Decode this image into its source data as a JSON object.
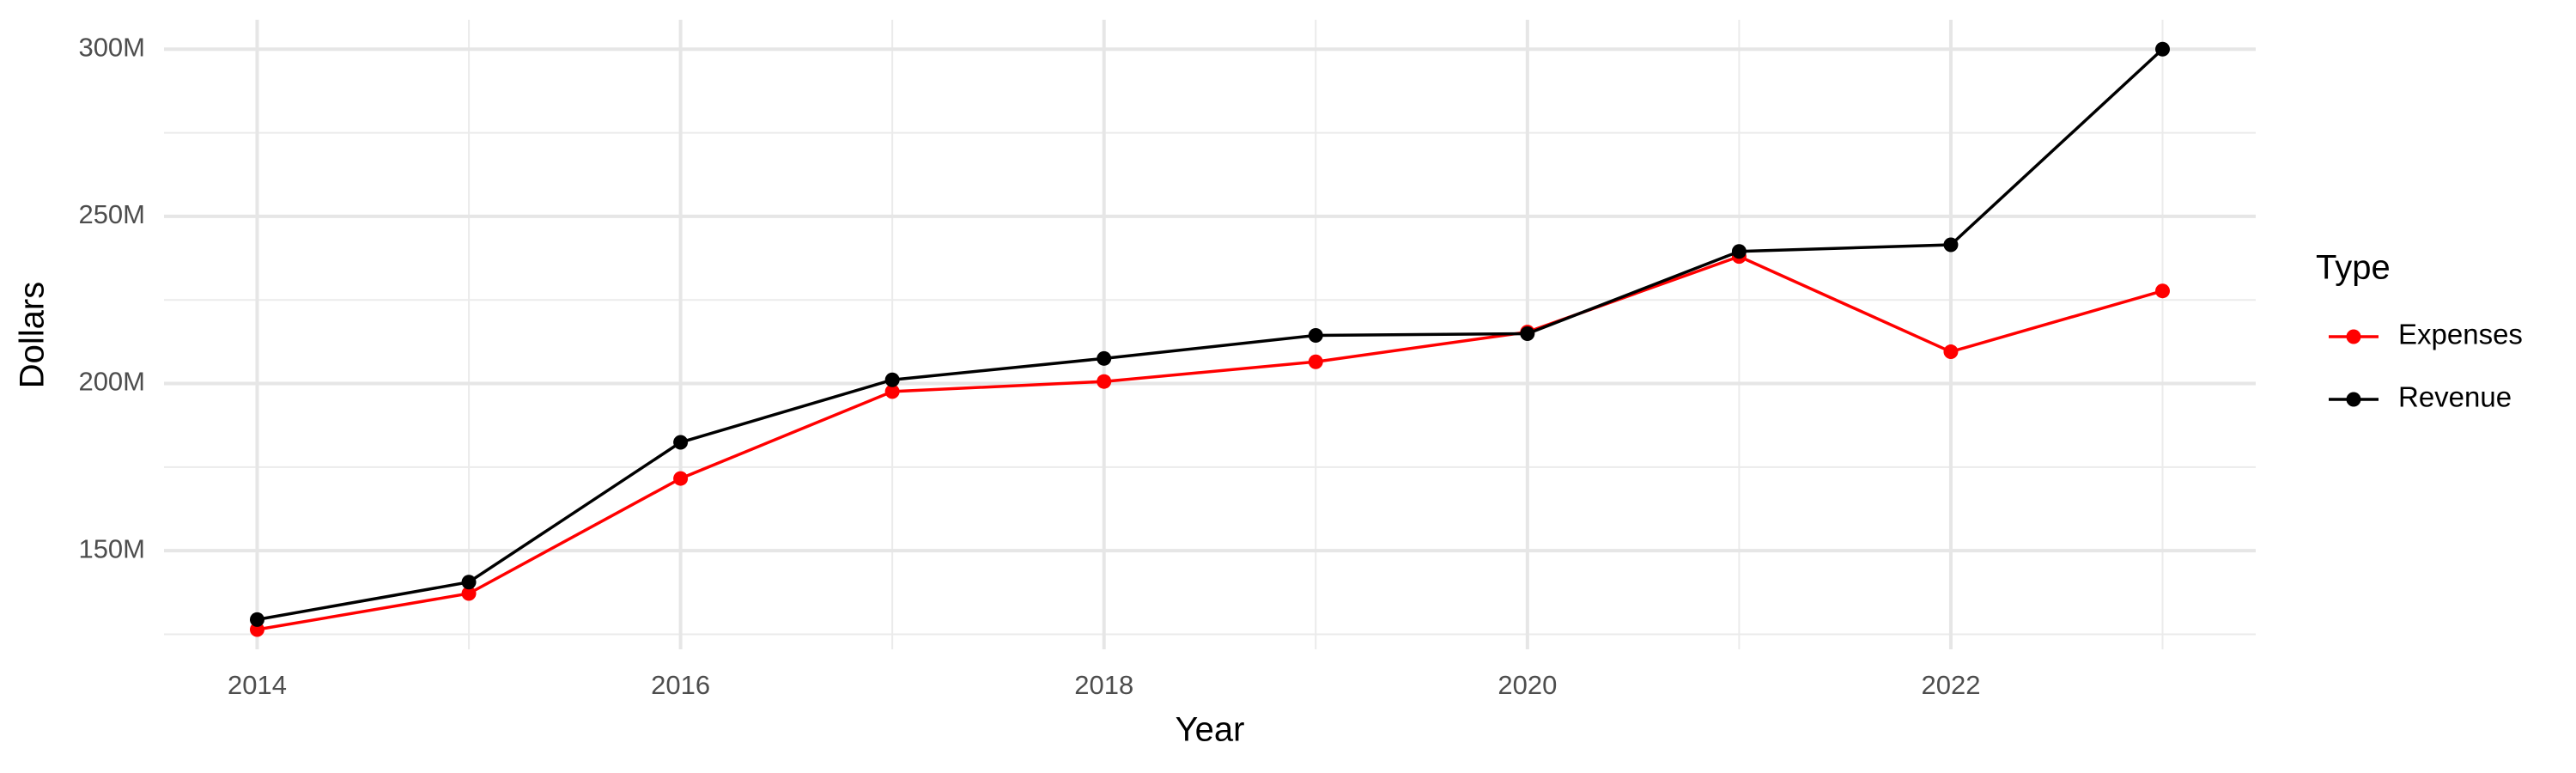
{
  "chart_data": {
    "type": "line",
    "x_label": "Year",
    "y_label": "Dollars",
    "legend_title": "Type",
    "x": [
      2014,
      2015,
      2016,
      2017,
      2018,
      2019,
      2020,
      2021,
      2022,
      2023
    ],
    "series": [
      {
        "name": "Expenses",
        "color": "#ff0000",
        "values": [
          126400000,
          137200000,
          171600000,
          197600000,
          200600000,
          206500000,
          215400000,
          238000000,
          209500000,
          227700000
        ]
      },
      {
        "name": "Revenue",
        "color": "#000000",
        "values": [
          129400000,
          140600000,
          182400000,
          201100000,
          207500000,
          214400000,
          214900000,
          239500000,
          241500000,
          300000000
        ]
      }
    ],
    "xlim": [
      2013.56,
      2023.44
    ],
    "xticks": [
      2014,
      2016,
      2018,
      2020,
      2022
    ],
    "minor_xticks": [
      2015,
      2017,
      2019,
      2021,
      2023
    ],
    "ylim": [
      120500000,
      308800000
    ],
    "yticks": [
      {
        "value": 150000000,
        "label": "150M"
      },
      {
        "value": 200000000,
        "label": "200M"
      },
      {
        "value": 250000000,
        "label": "250M"
      },
      {
        "value": 300000000,
        "label": "300M"
      }
    ],
    "minor_yticks": [
      125000000,
      175000000,
      225000000,
      275000000
    ],
    "grid": true,
    "legend_position": "right"
  }
}
